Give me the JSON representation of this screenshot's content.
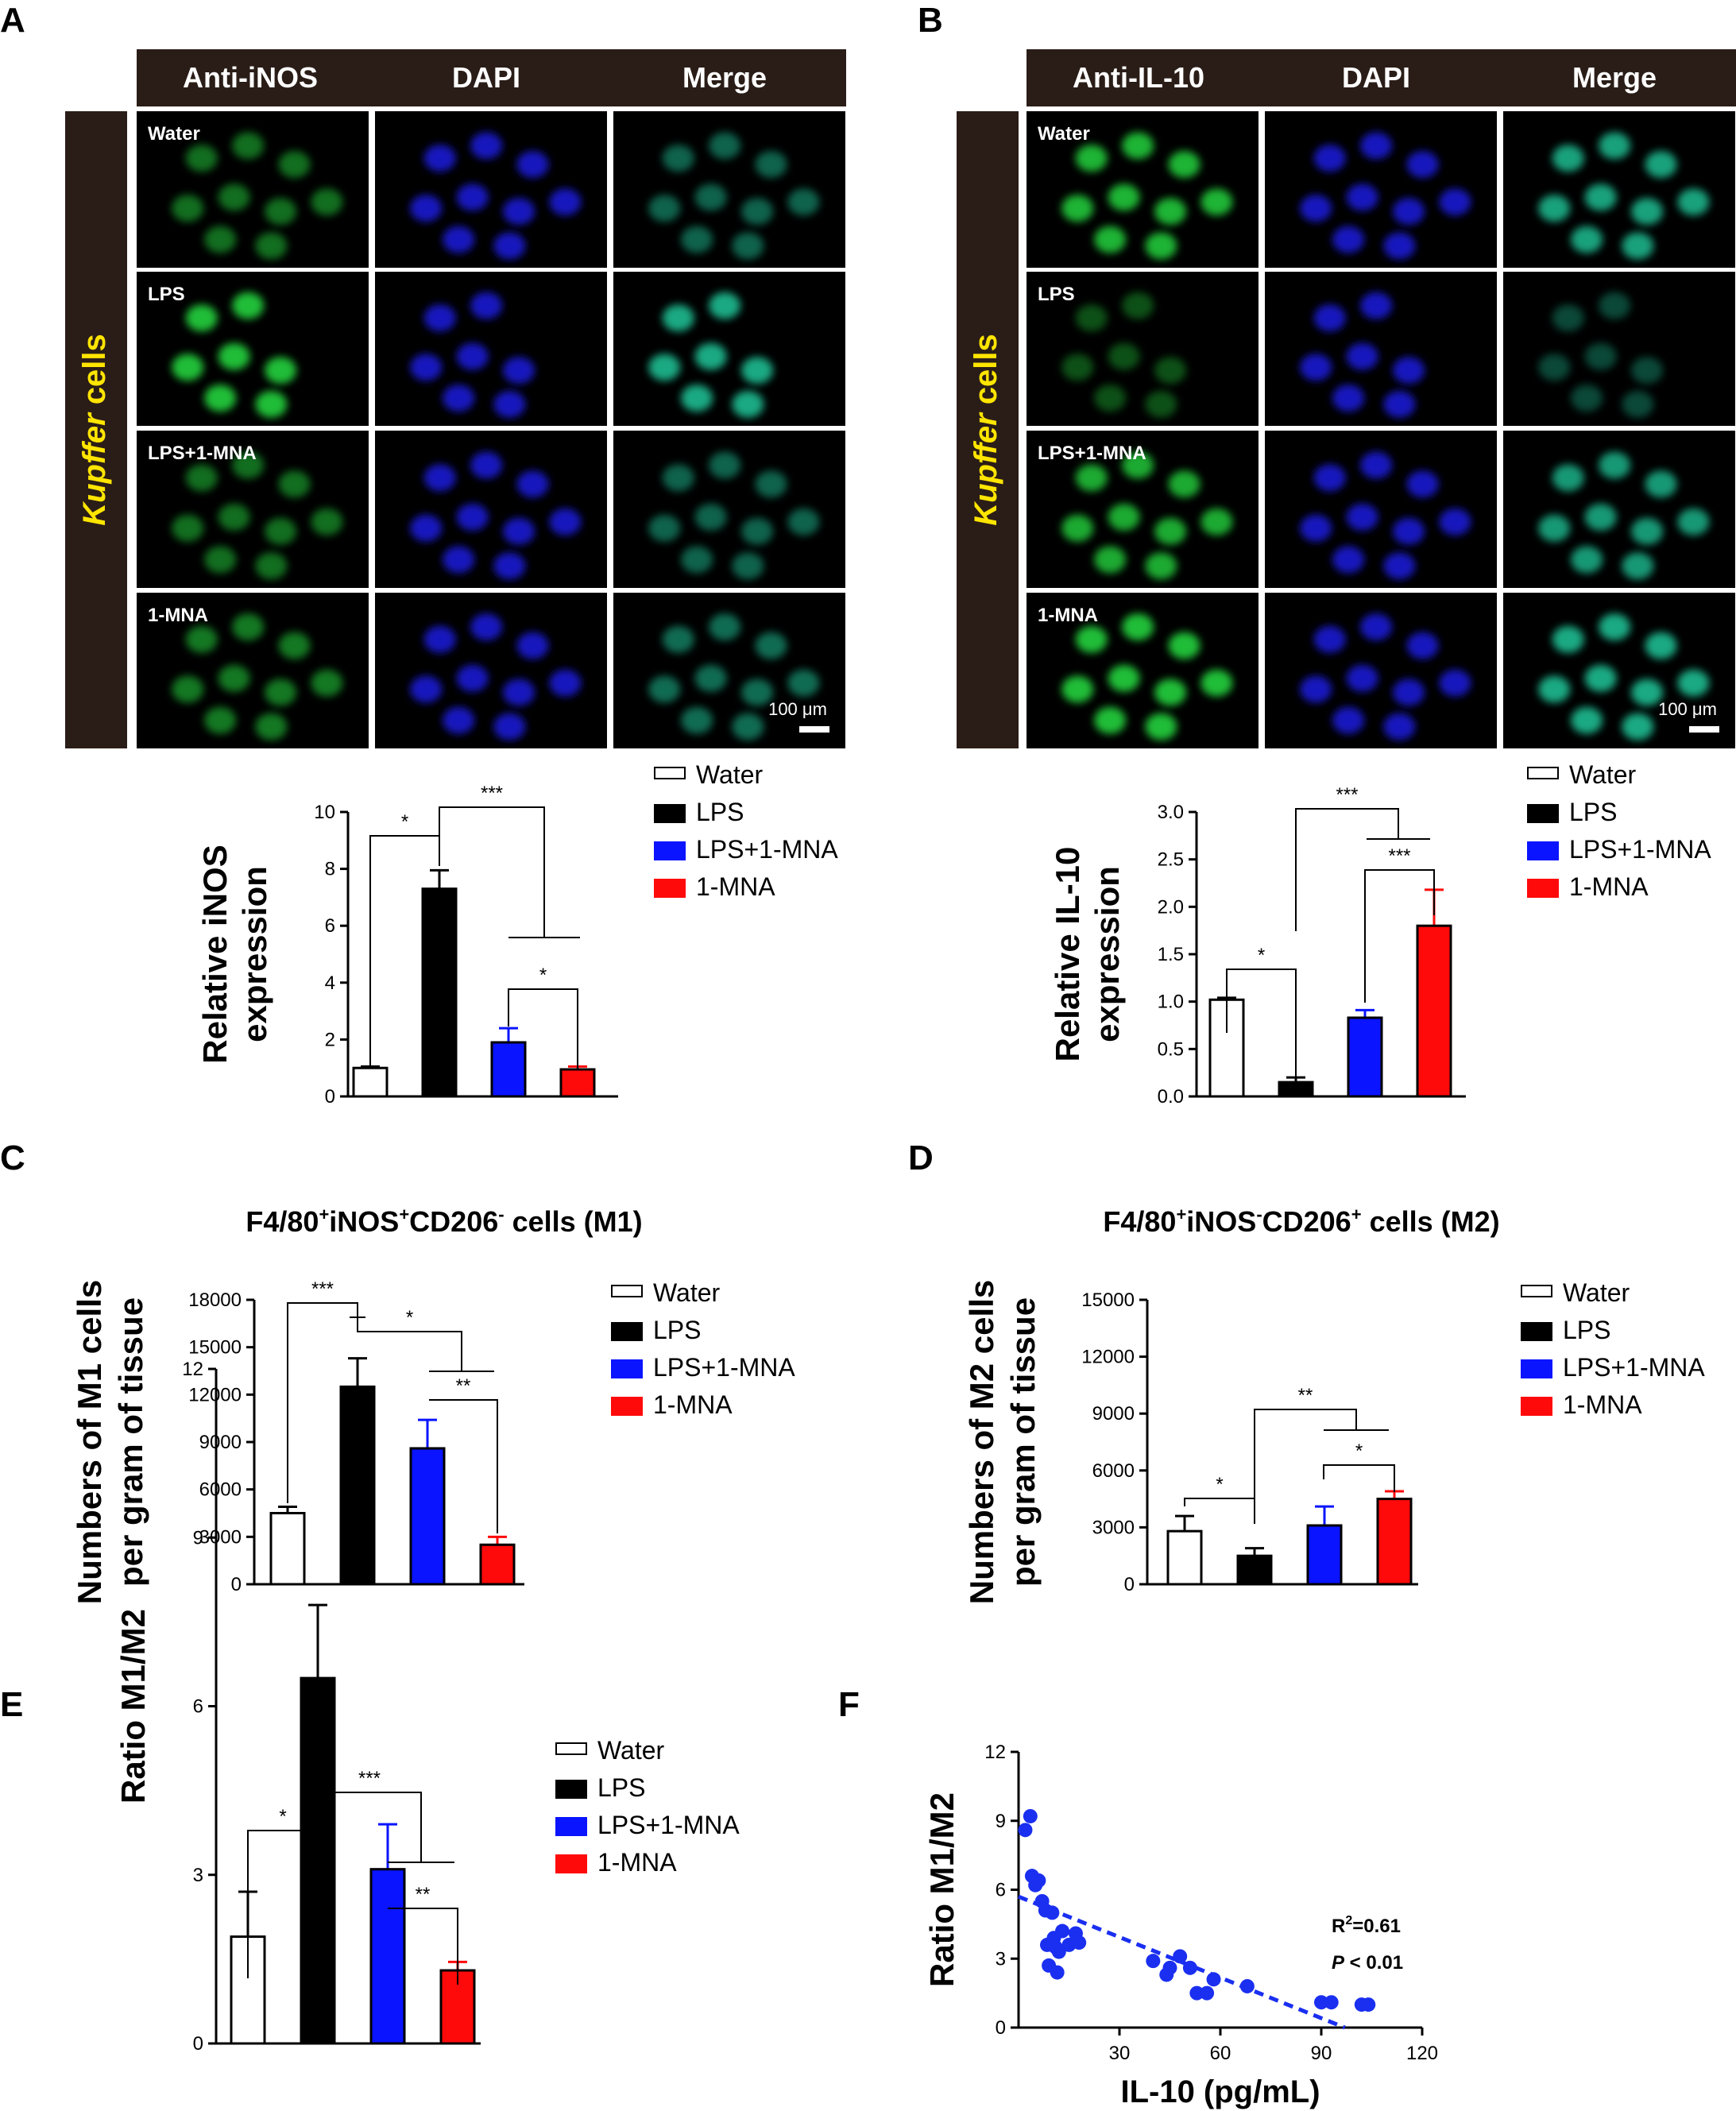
{
  "colors": {
    "water": "#ffffff",
    "lps": "#000000",
    "lps_mna": "#0a14ff",
    "mna": "#ff0a0a",
    "header": "#2a1d17",
    "yellow": "#ffe500",
    "cell_green": "#22c83a",
    "cell_blue": "#1a1ee0",
    "cell_teal": "#1fb38a",
    "scatter": "#1a2ff0"
  },
  "icons": [
    "microscopy-cell-image",
    "scale-bar",
    "bar-mark",
    "error-bar",
    "significance-bracket",
    "legend-swatch",
    "scatter-point",
    "regression-line"
  ],
  "panelA": {
    "letter": "A",
    "headers": [
      "Anti-iNOS",
      "DAPI",
      "Merge"
    ],
    "side_label_italic": "Kupffer",
    "side_label_rest": " cells",
    "rows": [
      "Water",
      "LPS",
      "LPS+1-MNA",
      "1-MNA"
    ],
    "scale": "100 μm"
  },
  "panelB": {
    "letter": "B",
    "headers": [
      "Anti-IL-10",
      "DAPI",
      "Merge"
    ],
    "side_label_italic": "Kupffer",
    "side_label_rest": " cells",
    "rows": [
      "Water",
      "LPS",
      "LPS+1-MNA",
      "1-MNA"
    ],
    "scale": "100 μm"
  },
  "legend": [
    "Water",
    "LPS",
    "LPS+1-MNA",
    "1-MNA"
  ],
  "panelC_letter": "C",
  "panelD_letter": "D",
  "panelE_letter": "E",
  "panelF_letter": "F",
  "chart_data": [
    {
      "id": "A",
      "type": "bar",
      "categories": [
        "Water",
        "LPS",
        "LPS+1-MNA",
        "1-MNA"
      ],
      "values": [
        1.0,
        7.3,
        1.9,
        0.95
      ],
      "errors": [
        0.05,
        0.65,
        0.5,
        0.1
      ],
      "ylabel": [
        "Relative iNOS",
        "expression"
      ],
      "ylim": [
        0,
        10
      ],
      "yticks": [
        0,
        2,
        4,
        6,
        8,
        10
      ],
      "significance": [
        "*",
        "***",
        "*"
      ]
    },
    {
      "id": "B",
      "type": "bar",
      "categories": [
        "Water",
        "LPS",
        "LPS+1-MNA",
        "1-MNA"
      ],
      "values": [
        1.02,
        0.15,
        0.83,
        1.8
      ],
      "errors": [
        0.02,
        0.05,
        0.08,
        0.38
      ],
      "ylabel": [
        "Relative IL-10",
        "expression"
      ],
      "ylim": [
        0,
        3
      ],
      "yticks": [
        "0.0",
        "0.5",
        "1.0",
        "1.5",
        "2.0",
        "2.5",
        "3.0"
      ],
      "significance": [
        "*",
        "***",
        "***"
      ]
    },
    {
      "id": "C",
      "type": "bar",
      "title_parts": [
        "F4/80",
        "+",
        "iNOS",
        "+",
        "CD206",
        "-",
        " cells (M1)"
      ],
      "categories": [
        "Water",
        "LPS",
        "LPS+1-MNA",
        "1-MNA"
      ],
      "values": [
        4500,
        12500,
        8600,
        2500
      ],
      "errors": [
        400,
        1800,
        1800,
        500
      ],
      "ylabel": [
        "Numbers of M1 cells",
        "per gram of tissue"
      ],
      "ylim": [
        0,
        18000
      ],
      "yticks": [
        0,
        3000,
        6000,
        9000,
        12000,
        15000,
        18000
      ],
      "significance": [
        "***",
        "*",
        "**"
      ]
    },
    {
      "id": "D",
      "type": "bar",
      "title_parts": [
        "F4/80",
        "+",
        "iNOS",
        "-",
        "CD206",
        "+",
        " cells (M2)"
      ],
      "categories": [
        "Water",
        "LPS",
        "LPS+1-MNA",
        "1-MNA"
      ],
      "values": [
        2800,
        1500,
        3100,
        4500
      ],
      "errors": [
        800,
        400,
        1000,
        400
      ],
      "ylabel": [
        "Numbers of M2 cells",
        "per gram of tissue"
      ],
      "ylim": [
        0,
        15000
      ],
      "yticks": [
        0,
        3000,
        6000,
        9000,
        12000,
        15000
      ],
      "significance": [
        "*",
        "**",
        "*"
      ]
    },
    {
      "id": "E",
      "type": "bar",
      "categories": [
        "Water",
        "LPS",
        "LPS+1-MNA",
        "1-MNA"
      ],
      "values": [
        1.9,
        6.5,
        3.1,
        1.3
      ],
      "errors": [
        0.8,
        1.3,
        0.8,
        0.15
      ],
      "ylabel": [
        "Ratio M1/M2"
      ],
      "ylim": [
        0,
        12
      ],
      "yticks": [
        0,
        3,
        6,
        9,
        12
      ],
      "significance": [
        "*",
        "***",
        "**"
      ]
    },
    {
      "id": "F",
      "type": "scatter",
      "xlabel": "IL-10 (pg/mL)",
      "ylabel": "Ratio M1/M2",
      "xlim": [
        0,
        120
      ],
      "ylim": [
        0,
        12
      ],
      "xticks": [
        30,
        60,
        90,
        120
      ],
      "yticks": [
        0,
        3,
        6,
        9,
        12
      ],
      "points": [
        [
          2,
          8.6
        ],
        [
          3.5,
          9.2
        ],
        [
          4,
          6.6
        ],
        [
          5,
          6.2
        ],
        [
          6,
          6.4
        ],
        [
          7,
          5.5
        ],
        [
          8,
          5.1
        ],
        [
          8.5,
          3.6
        ],
        [
          9,
          2.7
        ],
        [
          10,
          5.0
        ],
        [
          10.5,
          3.9
        ],
        [
          11,
          3.5
        ],
        [
          11.5,
          2.4
        ],
        [
          12,
          3.3
        ],
        [
          13,
          4.2
        ],
        [
          15,
          3.6
        ],
        [
          17,
          4.1
        ],
        [
          18,
          3.7
        ],
        [
          40,
          2.9
        ],
        [
          44,
          2.3
        ],
        [
          45,
          2.6
        ],
        [
          48,
          3.1
        ],
        [
          51,
          2.6
        ],
        [
          53,
          1.5
        ],
        [
          56,
          1.5
        ],
        [
          58,
          2.1
        ],
        [
          68,
          1.8
        ],
        [
          90,
          1.1
        ],
        [
          93,
          1.1
        ],
        [
          102,
          1.0
        ],
        [
          104,
          1.0
        ]
      ],
      "fit": {
        "x": [
          0,
          97
        ],
        "y": [
          5.7,
          0
        ]
      },
      "annotation_r2": "R",
      "annotation_r2_sup": "2",
      "annotation_r2_val": "=0.61",
      "annotation_p": "P",
      "annotation_p_rest": " < 0.01"
    }
  ]
}
